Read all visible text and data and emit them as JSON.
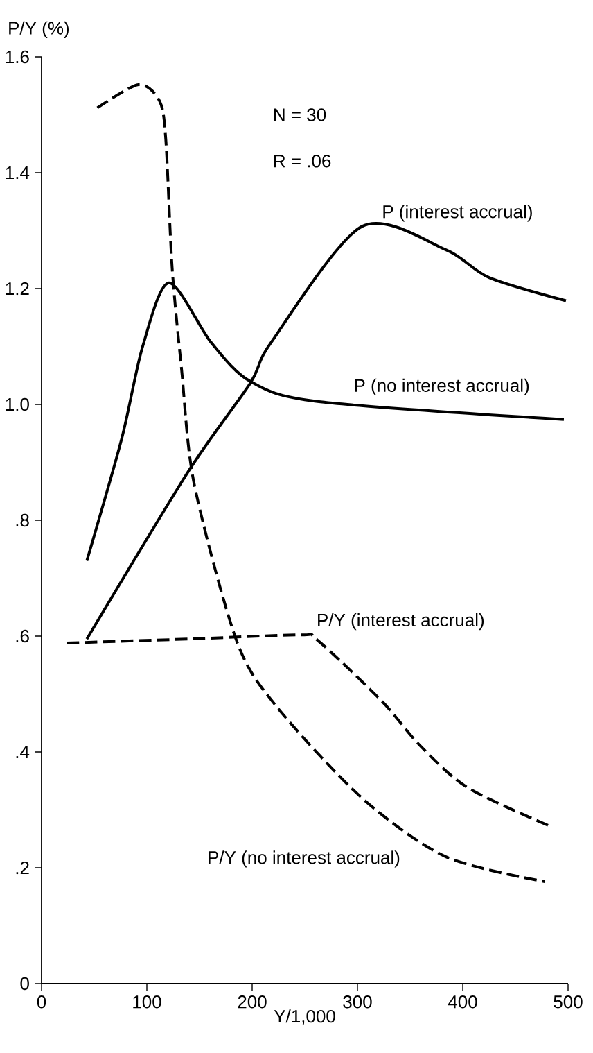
{
  "chart_data": {
    "type": "line",
    "xlabel": "Y/1,000",
    "ylabel": "P/Y (%)",
    "xlim": [
      0,
      500
    ],
    "ylim": [
      0,
      1.6
    ],
    "xticks": [
      0,
      100,
      200,
      300,
      400,
      500
    ],
    "yticks": [
      0,
      {
        "value": 0.2,
        "label": ".2"
      },
      {
        "value": 0.4,
        "label": ".4"
      },
      {
        "value": 0.6,
        "label": ".6"
      },
      {
        "value": 0.8,
        "label": ".8"
      },
      {
        "value": 1.0,
        "label": "1.0"
      },
      {
        "value": 1.2,
        "label": "1.2"
      },
      1.4,
      1.6
    ],
    "annotations": [
      "N = 30",
      "R = .06"
    ],
    "grid": false,
    "legend": false,
    "marker": "none",
    "series": [
      {
        "name": "P (no interest accrual)",
        "color": "#000000",
        "line_style": "solid",
        "x": [
          43,
          76,
          96,
          121,
          161,
          198,
          262,
          496
        ],
        "values": [
          0.73,
          0.94,
          1.1,
          1.21,
          1.107,
          1.04,
          1.005,
          0.974
        ]
      },
      {
        "name": "P (interest accrual)",
        "color": "#000000",
        "line_style": "solid",
        "x": [
          43,
          140,
          198,
          218,
          304,
          384,
          425,
          498
        ],
        "values": [
          0.595,
          0.886,
          1.036,
          1.107,
          1.307,
          1.267,
          1.219,
          1.179
        ]
      },
      {
        "name": "P/Y (interest accrual)",
        "color": "#000000",
        "line_style": "dashed",
        "x": [
          24,
          140,
          246,
          262,
          323,
          360,
          405,
          484
        ],
        "values": [
          0.588,
          0.595,
          0.602,
          0.593,
          0.488,
          0.41,
          0.338,
          0.271
        ]
      },
      {
        "name": "P/Y (no interest accrual)",
        "color": "#000000",
        "line_style": "dashed",
        "x": [
          53,
          92,
          112,
          118,
          124,
          133,
          145,
          185,
          222,
          304,
          384,
          478
        ],
        "values": [
          1.512,
          1.552,
          1.524,
          1.457,
          1.236,
          1.06,
          0.862,
          0.593,
          0.481,
          0.321,
          0.219,
          0.176
        ]
      }
    ]
  }
}
